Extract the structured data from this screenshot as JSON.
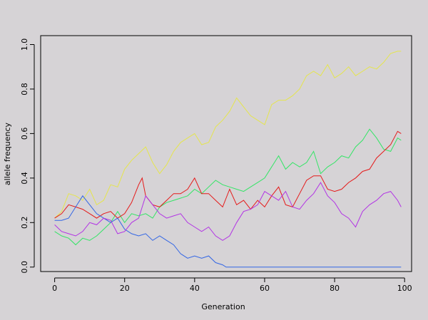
{
  "chart_data": {
    "type": "line",
    "title": "",
    "xlabel": "Generation",
    "ylabel": "allele frequency",
    "xlim": [
      -4,
      102
    ],
    "ylim": [
      -0.02,
      1.04
    ],
    "x_ticks": [
      0,
      20,
      40,
      60,
      80,
      100
    ],
    "y_ticks": [
      0.0,
      0.2,
      0.4,
      0.6,
      0.8,
      1.0
    ],
    "x_tick_labels": [
      "0",
      "20",
      "40",
      "60",
      "80",
      "100"
    ],
    "y_tick_labels": [
      "0.0",
      "0.2",
      "0.4",
      "0.6",
      "0.8",
      "1.0"
    ],
    "grid": false,
    "legend": "none",
    "series": [
      {
        "color": "#e5e54d",
        "points": [
          [
            0,
            0.22
          ],
          [
            2,
            0.25
          ],
          [
            4,
            0.33
          ],
          [
            6,
            0.32
          ],
          [
            8,
            0.3
          ],
          [
            10,
            0.35
          ],
          [
            12,
            0.28
          ],
          [
            14,
            0.3
          ],
          [
            16,
            0.37
          ],
          [
            18,
            0.36
          ],
          [
            20,
            0.44
          ],
          [
            22,
            0.48
          ],
          [
            24,
            0.51
          ],
          [
            26,
            0.54
          ],
          [
            28,
            0.47
          ],
          [
            30,
            0.42
          ],
          [
            32,
            0.46
          ],
          [
            34,
            0.52
          ],
          [
            36,
            0.56
          ],
          [
            38,
            0.58
          ],
          [
            40,
            0.6
          ],
          [
            42,
            0.55
          ],
          [
            44,
            0.56
          ],
          [
            46,
            0.63
          ],
          [
            48,
            0.66
          ],
          [
            50,
            0.7
          ],
          [
            52,
            0.76
          ],
          [
            54,
            0.72
          ],
          [
            56,
            0.68
          ],
          [
            58,
            0.66
          ],
          [
            60,
            0.64
          ],
          [
            62,
            0.73
          ],
          [
            64,
            0.75
          ],
          [
            66,
            0.75
          ],
          [
            68,
            0.77
          ],
          [
            70,
            0.8
          ],
          [
            72,
            0.86
          ],
          [
            74,
            0.88
          ],
          [
            76,
            0.86
          ],
          [
            78,
            0.91
          ],
          [
            80,
            0.85
          ],
          [
            82,
            0.87
          ],
          [
            84,
            0.9
          ],
          [
            86,
            0.86
          ],
          [
            88,
            0.88
          ],
          [
            90,
            0.9
          ],
          [
            92,
            0.89
          ],
          [
            94,
            0.92
          ],
          [
            96,
            0.96
          ],
          [
            98,
            0.97
          ],
          [
            99,
            0.97
          ]
        ]
      },
      {
        "color": "#33e566",
        "points": [
          [
            0,
            0.16
          ],
          [
            2,
            0.14
          ],
          [
            4,
            0.13
          ],
          [
            6,
            0.1
          ],
          [
            8,
            0.13
          ],
          [
            10,
            0.12
          ],
          [
            12,
            0.14
          ],
          [
            14,
            0.17
          ],
          [
            16,
            0.2
          ],
          [
            18,
            0.25
          ],
          [
            20,
            0.2
          ],
          [
            22,
            0.24
          ],
          [
            24,
            0.23
          ],
          [
            26,
            0.24
          ],
          [
            28,
            0.22
          ],
          [
            30,
            0.27
          ],
          [
            32,
            0.29
          ],
          [
            34,
            0.3
          ],
          [
            36,
            0.31
          ],
          [
            38,
            0.32
          ],
          [
            40,
            0.35
          ],
          [
            42,
            0.33
          ],
          [
            44,
            0.36
          ],
          [
            46,
            0.39
          ],
          [
            48,
            0.37
          ],
          [
            50,
            0.36
          ],
          [
            52,
            0.35
          ],
          [
            54,
            0.34
          ],
          [
            56,
            0.36
          ],
          [
            58,
            0.38
          ],
          [
            60,
            0.4
          ],
          [
            62,
            0.45
          ],
          [
            64,
            0.5
          ],
          [
            66,
            0.44
          ],
          [
            68,
            0.47
          ],
          [
            70,
            0.45
          ],
          [
            72,
            0.47
          ],
          [
            74,
            0.52
          ],
          [
            76,
            0.42
          ],
          [
            78,
            0.45
          ],
          [
            80,
            0.47
          ],
          [
            82,
            0.5
          ],
          [
            84,
            0.49
          ],
          [
            86,
            0.54
          ],
          [
            88,
            0.57
          ],
          [
            90,
            0.62
          ],
          [
            92,
            0.58
          ],
          [
            94,
            0.53
          ],
          [
            96,
            0.52
          ],
          [
            98,
            0.58
          ],
          [
            99,
            0.57
          ]
        ]
      },
      {
        "color": "#e51a1a",
        "points": [
          [
            0,
            0.22
          ],
          [
            2,
            0.24
          ],
          [
            4,
            0.28
          ],
          [
            6,
            0.27
          ],
          [
            8,
            0.26
          ],
          [
            10,
            0.24
          ],
          [
            12,
            0.22
          ],
          [
            14,
            0.24
          ],
          [
            16,
            0.25
          ],
          [
            18,
            0.22
          ],
          [
            20,
            0.24
          ],
          [
            22,
            0.29
          ],
          [
            24,
            0.37
          ],
          [
            25,
            0.4
          ],
          [
            26,
            0.32
          ],
          [
            28,
            0.28
          ],
          [
            30,
            0.27
          ],
          [
            32,
            0.3
          ],
          [
            34,
            0.33
          ],
          [
            36,
            0.33
          ],
          [
            38,
            0.35
          ],
          [
            40,
            0.4
          ],
          [
            42,
            0.33
          ],
          [
            44,
            0.33
          ],
          [
            46,
            0.3
          ],
          [
            48,
            0.27
          ],
          [
            50,
            0.35
          ],
          [
            52,
            0.28
          ],
          [
            54,
            0.3
          ],
          [
            56,
            0.26
          ],
          [
            58,
            0.3
          ],
          [
            60,
            0.27
          ],
          [
            62,
            0.32
          ],
          [
            64,
            0.36
          ],
          [
            66,
            0.28
          ],
          [
            68,
            0.27
          ],
          [
            70,
            0.33
          ],
          [
            72,
            0.39
          ],
          [
            74,
            0.41
          ],
          [
            76,
            0.41
          ],
          [
            78,
            0.35
          ],
          [
            80,
            0.34
          ],
          [
            82,
            0.35
          ],
          [
            84,
            0.38
          ],
          [
            86,
            0.4
          ],
          [
            88,
            0.43
          ],
          [
            90,
            0.44
          ],
          [
            92,
            0.49
          ],
          [
            94,
            0.52
          ],
          [
            96,
            0.55
          ],
          [
            98,
            0.61
          ],
          [
            99,
            0.6
          ]
        ]
      },
      {
        "color": "#3366e5",
        "points": [
          [
            0,
            0.21
          ],
          [
            2,
            0.21
          ],
          [
            4,
            0.22
          ],
          [
            6,
            0.27
          ],
          [
            8,
            0.32
          ],
          [
            10,
            0.28
          ],
          [
            12,
            0.24
          ],
          [
            14,
            0.22
          ],
          [
            16,
            0.2
          ],
          [
            18,
            0.22
          ],
          [
            20,
            0.17
          ],
          [
            22,
            0.15
          ],
          [
            24,
            0.14
          ],
          [
            26,
            0.15
          ],
          [
            28,
            0.12
          ],
          [
            30,
            0.14
          ],
          [
            32,
            0.12
          ],
          [
            34,
            0.1
          ],
          [
            36,
            0.06
          ],
          [
            38,
            0.04
          ],
          [
            40,
            0.05
          ],
          [
            42,
            0.04
          ],
          [
            44,
            0.05
          ],
          [
            46,
            0.02
          ],
          [
            48,
            0.01
          ],
          [
            49,
            0.0
          ],
          [
            60,
            0.0
          ],
          [
            80,
            0.0
          ],
          [
            99,
            0.0
          ]
        ]
      },
      {
        "color": "#b233e5",
        "points": [
          [
            0,
            0.19
          ],
          [
            2,
            0.16
          ],
          [
            4,
            0.15
          ],
          [
            6,
            0.14
          ],
          [
            8,
            0.16
          ],
          [
            10,
            0.2
          ],
          [
            12,
            0.19
          ],
          [
            14,
            0.22
          ],
          [
            16,
            0.21
          ],
          [
            18,
            0.15
          ],
          [
            20,
            0.16
          ],
          [
            22,
            0.2
          ],
          [
            24,
            0.22
          ],
          [
            26,
            0.32
          ],
          [
            28,
            0.28
          ],
          [
            30,
            0.24
          ],
          [
            32,
            0.22
          ],
          [
            34,
            0.23
          ],
          [
            36,
            0.24
          ],
          [
            38,
            0.2
          ],
          [
            40,
            0.18
          ],
          [
            42,
            0.16
          ],
          [
            44,
            0.18
          ],
          [
            46,
            0.14
          ],
          [
            48,
            0.12
          ],
          [
            50,
            0.14
          ],
          [
            52,
            0.2
          ],
          [
            54,
            0.25
          ],
          [
            56,
            0.26
          ],
          [
            58,
            0.28
          ],
          [
            60,
            0.34
          ],
          [
            62,
            0.32
          ],
          [
            64,
            0.3
          ],
          [
            66,
            0.34
          ],
          [
            68,
            0.27
          ],
          [
            70,
            0.26
          ],
          [
            72,
            0.3
          ],
          [
            74,
            0.33
          ],
          [
            76,
            0.38
          ],
          [
            78,
            0.32
          ],
          [
            80,
            0.29
          ],
          [
            82,
            0.24
          ],
          [
            84,
            0.22
          ],
          [
            86,
            0.18
          ],
          [
            88,
            0.25
          ],
          [
            90,
            0.28
          ],
          [
            92,
            0.3
          ],
          [
            94,
            0.33
          ],
          [
            96,
            0.34
          ],
          [
            98,
            0.3
          ],
          [
            99,
            0.27
          ]
        ]
      }
    ]
  }
}
